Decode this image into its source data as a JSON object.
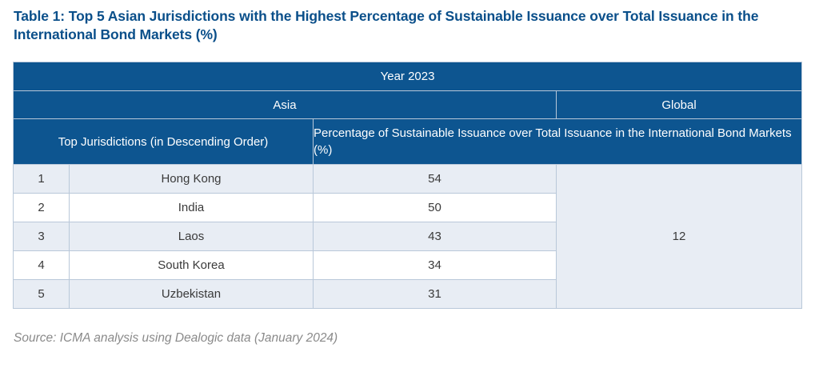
{
  "title": "Table 1: Top 5 Asian Jurisdictions with the Highest Percentage of Sustainable Issuance over Total Issuance in the International Bond Markets (%)",
  "table": {
    "year_header": "Year 2023",
    "asia_header": "Asia",
    "global_header": "Global",
    "col_jurisdictions": "Top Jurisdictions (in Descending Order)",
    "col_percentage": "Percentage of Sustainable Issuance over Total Issuance in the International Bond Markets (%)",
    "rows": [
      {
        "rank": "1",
        "name": "Hong Kong",
        "value": "54"
      },
      {
        "rank": "2",
        "name": "India",
        "value": "50"
      },
      {
        "rank": "3",
        "name": "Laos",
        "value": "43"
      },
      {
        "rank": "4",
        "name": "South Korea",
        "value": "34"
      },
      {
        "rank": "5",
        "name": "Uzbekistan",
        "value": "31"
      }
    ],
    "global_value": "12"
  },
  "source": "Source: ICMA analysis using Dealogic data (January 2024)",
  "colors": {
    "header_bg": "#0d5590",
    "title": "#0a4f8a",
    "row_shade": "#e8edf4"
  }
}
